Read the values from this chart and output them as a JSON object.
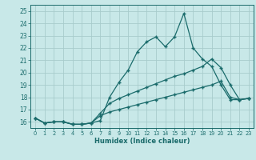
{
  "xlabel": "Humidex (Indice chaleur)",
  "background_color": "#c8e8e8",
  "grid_color": "#a8cccc",
  "line_color": "#1a6b6b",
  "xlim": [
    -0.5,
    23.5
  ],
  "ylim": [
    15.5,
    25.5
  ],
  "xticks": [
    0,
    1,
    2,
    3,
    4,
    5,
    6,
    7,
    8,
    9,
    10,
    11,
    12,
    13,
    14,
    15,
    16,
    17,
    18,
    19,
    20,
    21,
    22,
    23
  ],
  "yticks": [
    16,
    17,
    18,
    19,
    20,
    21,
    22,
    23,
    24,
    25
  ],
  "line1_x": [
    0,
    1,
    2,
    3,
    4,
    5,
    6,
    7,
    8,
    9,
    10,
    11,
    12,
    13,
    14,
    15,
    16,
    17,
    18,
    19,
    20,
    21,
    22,
    23
  ],
  "line1_y": [
    16.3,
    15.9,
    16.0,
    16.0,
    15.8,
    15.8,
    15.9,
    16.1,
    18.0,
    19.2,
    20.2,
    21.7,
    22.5,
    22.9,
    22.1,
    22.9,
    24.8,
    22.0,
    21.1,
    20.5,
    19.0,
    17.8,
    17.8,
    17.9
  ],
  "line2_x": [
    0,
    1,
    2,
    3,
    4,
    5,
    6,
    7,
    8,
    9,
    10,
    11,
    12,
    13,
    14,
    15,
    16,
    17,
    18,
    19,
    20,
    21,
    22,
    23
  ],
  "line2_y": [
    16.3,
    15.9,
    16.0,
    16.0,
    15.8,
    15.8,
    15.9,
    16.7,
    17.5,
    17.9,
    18.2,
    18.5,
    18.8,
    19.1,
    19.4,
    19.7,
    19.9,
    20.2,
    20.5,
    21.1,
    20.4,
    19.0,
    17.8,
    17.9
  ],
  "line3_x": [
    0,
    1,
    2,
    3,
    4,
    5,
    6,
    7,
    8,
    9,
    10,
    11,
    12,
    13,
    14,
    15,
    16,
    17,
    18,
    19,
    20,
    21,
    22,
    23
  ],
  "line3_y": [
    16.3,
    15.9,
    16.0,
    16.0,
    15.8,
    15.8,
    15.9,
    16.5,
    16.8,
    17.0,
    17.2,
    17.4,
    17.6,
    17.8,
    18.0,
    18.2,
    18.4,
    18.6,
    18.8,
    19.0,
    19.3,
    18.0,
    17.8,
    17.9
  ]
}
